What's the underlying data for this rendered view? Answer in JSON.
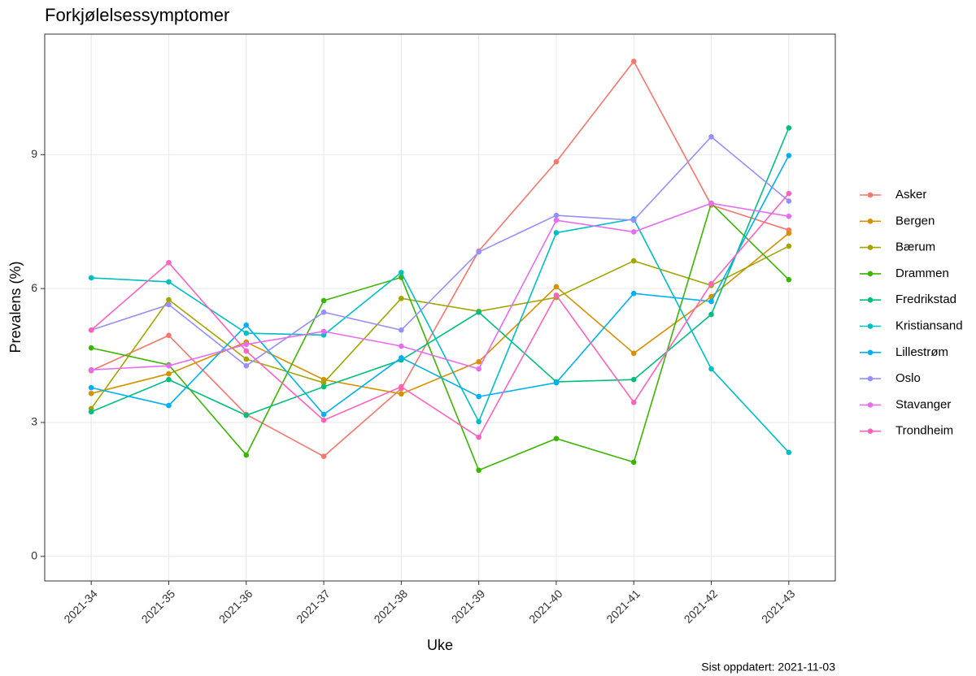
{
  "chart_data": {
    "type": "line",
    "title": "Forkjølelsessymptomer",
    "x_label": "Uke",
    "y_label": "Prevalens (%)",
    "caption": "Sist oppdatert: 2021-11-03",
    "categories": [
      "2021-34",
      "2021-35",
      "2021-36",
      "2021-37",
      "2021-38",
      "2021-39",
      "2021-40",
      "2021-41",
      "2021-42",
      "2021-43"
    ],
    "ylim": [
      -0.55,
      11.7
    ],
    "yticks": [
      0,
      3,
      6,
      9
    ],
    "grid": true,
    "legend": "right",
    "series": [
      {
        "name": "Asker",
        "color": "#F8766D",
        "values": [
          4.16,
          4.95,
          3.18,
          2.24,
          3.76,
          6.84,
          8.84,
          11.09,
          7.87,
          7.31
        ]
      },
      {
        "name": "Bergen",
        "color": "#D89000",
        "values": [
          3.65,
          4.09,
          4.8,
          3.96,
          3.64,
          4.36,
          6.04,
          4.55,
          5.82,
          7.24
        ]
      },
      {
        "name": "Bærum",
        "color": "#A3A500",
        "values": [
          3.31,
          5.75,
          4.42,
          3.89,
          5.78,
          5.49,
          5.8,
          6.62,
          6.07,
          6.95
        ]
      },
      {
        "name": "Drammen",
        "color": "#39B600",
        "values": [
          4.67,
          4.29,
          2.27,
          5.73,
          6.25,
          1.93,
          2.64,
          2.11,
          7.91,
          6.2
        ]
      },
      {
        "name": "Fredrikstad",
        "color": "#00BF7D",
        "values": [
          3.24,
          3.96,
          3.16,
          3.8,
          4.4,
          5.47,
          3.91,
          3.96,
          5.42,
          9.6
        ]
      },
      {
        "name": "Kristiansand",
        "color": "#00BFC4",
        "values": [
          6.24,
          6.15,
          5.0,
          4.96,
          6.36,
          3.02,
          7.25,
          7.56,
          4.2,
          2.33
        ]
      },
      {
        "name": "Lillestrøm",
        "color": "#00B0F6",
        "values": [
          3.78,
          3.38,
          5.18,
          3.18,
          4.45,
          3.58,
          3.89,
          5.89,
          5.71,
          8.98
        ]
      },
      {
        "name": "Oslo",
        "color": "#9590FF",
        "values": [
          5.07,
          5.64,
          4.27,
          5.47,
          5.07,
          6.82,
          7.64,
          7.53,
          9.4,
          7.96
        ]
      },
      {
        "name": "Stavanger",
        "color": "#E76BF3",
        "values": [
          4.18,
          4.27,
          4.75,
          5.04,
          4.71,
          4.2,
          7.53,
          7.27,
          7.91,
          7.62
        ]
      },
      {
        "name": "Trondheim",
        "color": "#FF62BC",
        "values": [
          5.07,
          6.58,
          4.6,
          3.05,
          3.8,
          2.67,
          5.85,
          3.45,
          6.11,
          8.13
        ]
      }
    ]
  }
}
